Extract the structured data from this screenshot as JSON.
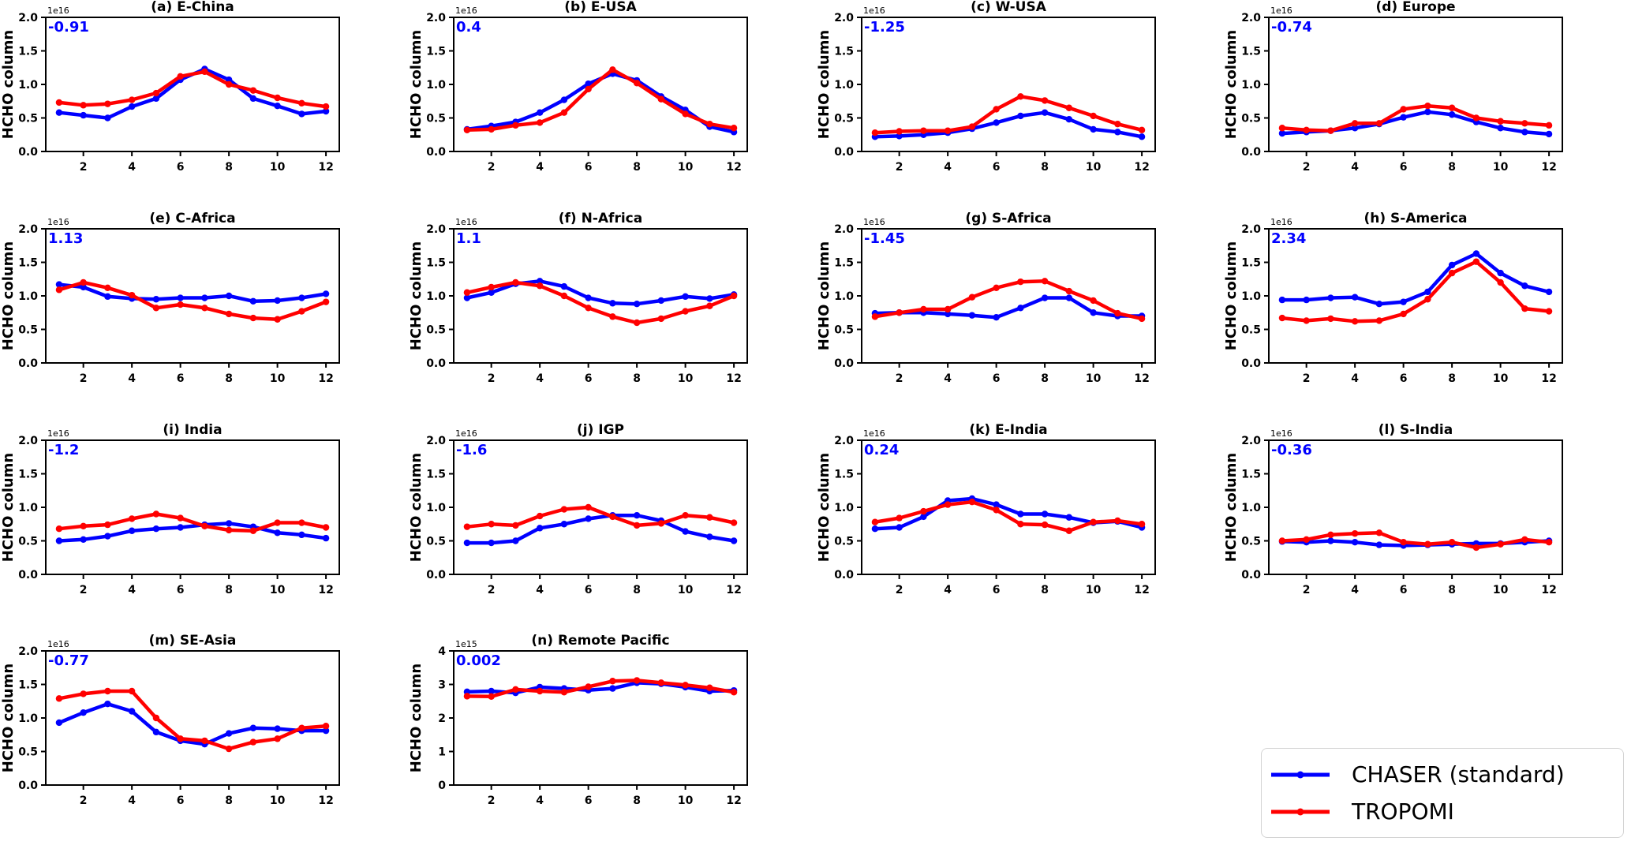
{
  "figure": {
    "background": "#ffffff",
    "annotation_color": "#0000ff",
    "axis_color": "#000000"
  },
  "legend": {
    "items": [
      {
        "name": "chaser",
        "label": "CHASER (standard)",
        "color": "#0000ff"
      },
      {
        "name": "tropomi",
        "label": "TROPOMI",
        "color": "#ff0000"
      }
    ]
  },
  "chart_data": {
    "type": "line",
    "x": [
      1,
      2,
      3,
      4,
      5,
      6,
      7,
      8,
      9,
      10,
      11,
      12
    ],
    "xticks": [
      2,
      4,
      6,
      8,
      10,
      12
    ],
    "xlabel": "",
    "grid": false,
    "legend_position": "bottom-right",
    "series_names": [
      "CHASER (standard)",
      "TROPOMI"
    ],
    "series_colors": [
      "#0000ff",
      "#ff0000"
    ],
    "panels": [
      {
        "id": "a",
        "title": "(a) E-China",
        "ylabel": "HCHO column",
        "scale_label": "1e16",
        "annotation": "-0.91",
        "ylim": [
          0,
          2.0
        ],
        "yticks": [
          0.0,
          0.5,
          1.0,
          1.5,
          2.0
        ],
        "ytick_labels": [
          "0.0",
          "0.5",
          "1.0",
          "1.5",
          "2.0"
        ],
        "series": [
          {
            "name": "CHASER (standard)",
            "color": "#0000ff",
            "values": [
              0.58,
              0.54,
              0.5,
              0.67,
              0.79,
              1.07,
              1.23,
              1.07,
              0.79,
              0.68,
              0.56,
              0.6
            ]
          },
          {
            "name": "TROPOMI",
            "color": "#ff0000",
            "values": [
              0.73,
              0.69,
              0.71,
              0.77,
              0.87,
              1.12,
              1.19,
              1.0,
              0.91,
              0.8,
              0.72,
              0.67
            ]
          }
        ]
      },
      {
        "id": "b",
        "title": "(b) E-USA",
        "ylabel": "HCHO column",
        "scale_label": "1e16",
        "annotation": "0.4",
        "ylim": [
          0,
          2.0
        ],
        "yticks": [
          0.0,
          0.5,
          1.0,
          1.5,
          2.0
        ],
        "ytick_labels": [
          "0.0",
          "0.5",
          "1.0",
          "1.5",
          "2.0"
        ],
        "series": [
          {
            "name": "CHASER (standard)",
            "color": "#0000ff",
            "values": [
              0.33,
              0.38,
              0.44,
              0.58,
              0.77,
              1.01,
              1.16,
              1.06,
              0.82,
              0.62,
              0.37,
              0.29
            ]
          },
          {
            "name": "TROPOMI",
            "color": "#ff0000",
            "values": [
              0.32,
              0.33,
              0.39,
              0.43,
              0.58,
              0.93,
              1.22,
              1.02,
              0.78,
              0.56,
              0.41,
              0.35
            ]
          }
        ]
      },
      {
        "id": "c",
        "title": "(c) W-USA",
        "ylabel": "HCHO column",
        "scale_label": "1e16",
        "annotation": "-1.25",
        "ylim": [
          0,
          2.0
        ],
        "yticks": [
          0.0,
          0.5,
          1.0,
          1.5,
          2.0
        ],
        "ytick_labels": [
          "0.0",
          "0.5",
          "1.0",
          "1.5",
          "2.0"
        ],
        "series": [
          {
            "name": "CHASER (standard)",
            "color": "#0000ff",
            "values": [
              0.22,
              0.23,
              0.25,
              0.28,
              0.34,
              0.43,
              0.53,
              0.58,
              0.48,
              0.33,
              0.29,
              0.22
            ]
          },
          {
            "name": "TROPOMI",
            "color": "#ff0000",
            "values": [
              0.28,
              0.3,
              0.31,
              0.31,
              0.37,
              0.63,
              0.82,
              0.76,
              0.65,
              0.53,
              0.41,
              0.32
            ]
          }
        ]
      },
      {
        "id": "d",
        "title": "(d) Europe",
        "ylabel": "HCHO column",
        "scale_label": "1e16",
        "annotation": "-0.74",
        "ylim": [
          0,
          2.0
        ],
        "yticks": [
          0.0,
          0.5,
          1.0,
          1.5,
          2.0
        ],
        "ytick_labels": [
          "0.0",
          "0.5",
          "1.0",
          "1.5",
          "2.0"
        ],
        "series": [
          {
            "name": "CHASER (standard)",
            "color": "#0000ff",
            "values": [
              0.27,
              0.29,
              0.31,
              0.35,
              0.41,
              0.51,
              0.59,
              0.55,
              0.44,
              0.35,
              0.29,
              0.26
            ]
          },
          {
            "name": "TROPOMI",
            "color": "#ff0000",
            "values": [
              0.35,
              0.32,
              0.31,
              0.42,
              0.42,
              0.63,
              0.68,
              0.65,
              0.5,
              0.45,
              0.42,
              0.39
            ]
          }
        ]
      },
      {
        "id": "e",
        "title": "(e) C-Africa",
        "ylabel": "HCHO column",
        "scale_label": "1e16",
        "annotation": "1.13",
        "ylim": [
          0,
          2.0
        ],
        "yticks": [
          0.0,
          0.5,
          1.0,
          1.5,
          2.0
        ],
        "ytick_labels": [
          "0.0",
          "0.5",
          "1.0",
          "1.5",
          "2.0"
        ],
        "series": [
          {
            "name": "CHASER (standard)",
            "color": "#0000ff",
            "values": [
              1.17,
              1.13,
              0.99,
              0.96,
              0.95,
              0.97,
              0.97,
              1.0,
              0.92,
              0.93,
              0.97,
              1.03
            ]
          },
          {
            "name": "TROPOMI",
            "color": "#ff0000",
            "values": [
              1.09,
              1.2,
              1.12,
              1.01,
              0.82,
              0.87,
              0.82,
              0.73,
              0.67,
              0.65,
              0.77,
              0.91
            ]
          }
        ]
      },
      {
        "id": "f",
        "title": "(f) N-Africa",
        "ylabel": "HCHO column",
        "scale_label": "1e16",
        "annotation": "1.1",
        "ylim": [
          0,
          2.0
        ],
        "yticks": [
          0.0,
          0.5,
          1.0,
          1.5,
          2.0
        ],
        "ytick_labels": [
          "0.0",
          "0.5",
          "1.0",
          "1.5",
          "2.0"
        ],
        "series": [
          {
            "name": "CHASER (standard)",
            "color": "#0000ff",
            "values": [
              0.97,
              1.05,
              1.18,
              1.22,
              1.14,
              0.97,
              0.89,
              0.88,
              0.93,
              0.99,
              0.96,
              1.02
            ]
          },
          {
            "name": "TROPOMI",
            "color": "#ff0000",
            "values": [
              1.05,
              1.13,
              1.2,
              1.15,
              1.0,
              0.82,
              0.69,
              0.6,
              0.66,
              0.77,
              0.85,
              1.0
            ]
          }
        ]
      },
      {
        "id": "g",
        "title": "(g) S-Africa",
        "ylabel": "HCHO column",
        "scale_label": "1e16",
        "annotation": "-1.45",
        "ylim": [
          0,
          2.0
        ],
        "yticks": [
          0.0,
          0.5,
          1.0,
          1.5,
          2.0
        ],
        "ytick_labels": [
          "0.0",
          "0.5",
          "1.0",
          "1.5",
          "2.0"
        ],
        "series": [
          {
            "name": "CHASER (standard)",
            "color": "#0000ff",
            "values": [
              0.74,
              0.75,
              0.75,
              0.73,
              0.71,
              0.68,
              0.82,
              0.97,
              0.97,
              0.75,
              0.7,
              0.7
            ]
          },
          {
            "name": "TROPOMI",
            "color": "#ff0000",
            "values": [
              0.69,
              0.75,
              0.8,
              0.8,
              0.98,
              1.12,
              1.21,
              1.22,
              1.07,
              0.93,
              0.74,
              0.66
            ]
          }
        ]
      },
      {
        "id": "h",
        "title": "(h) S-America",
        "ylabel": "HCHO column",
        "scale_label": "1e16",
        "annotation": "2.34",
        "ylim": [
          0,
          2.0
        ],
        "yticks": [
          0.0,
          0.5,
          1.0,
          1.5,
          2.0
        ],
        "ytick_labels": [
          "0.0",
          "0.5",
          "1.0",
          "1.5",
          "2.0"
        ],
        "series": [
          {
            "name": "CHASER (standard)",
            "color": "#0000ff",
            "values": [
              0.94,
              0.94,
              0.97,
              0.98,
              0.88,
              0.91,
              1.06,
              1.46,
              1.63,
              1.34,
              1.15,
              1.06
            ]
          },
          {
            "name": "TROPOMI",
            "color": "#ff0000",
            "values": [
              0.67,
              0.63,
              0.66,
              0.62,
              0.63,
              0.73,
              0.95,
              1.34,
              1.51,
              1.2,
              0.81,
              0.77
            ]
          }
        ]
      },
      {
        "id": "i",
        "title": "(i) India",
        "ylabel": "HCHO column",
        "scale_label": "1e16",
        "annotation": "-1.2",
        "ylim": [
          0,
          2.0
        ],
        "yticks": [
          0.0,
          0.5,
          1.0,
          1.5,
          2.0
        ],
        "ytick_labels": [
          "0.0",
          "0.5",
          "1.0",
          "1.5",
          "2.0"
        ],
        "series": [
          {
            "name": "CHASER (standard)",
            "color": "#0000ff",
            "values": [
              0.5,
              0.52,
              0.57,
              0.65,
              0.68,
              0.7,
              0.74,
              0.76,
              0.71,
              0.62,
              0.59,
              0.54
            ]
          },
          {
            "name": "TROPOMI",
            "color": "#ff0000",
            "values": [
              0.68,
              0.72,
              0.74,
              0.83,
              0.9,
              0.84,
              0.72,
              0.66,
              0.65,
              0.77,
              0.77,
              0.7
            ]
          }
        ]
      },
      {
        "id": "j",
        "title": "(j) IGP",
        "ylabel": "HCHO column",
        "scale_label": "1e16",
        "annotation": "-1.6",
        "ylim": [
          0,
          2.0
        ],
        "yticks": [
          0.0,
          0.5,
          1.0,
          1.5,
          2.0
        ],
        "ytick_labels": [
          "0.0",
          "0.5",
          "1.0",
          "1.5",
          "2.0"
        ],
        "series": [
          {
            "name": "CHASER (standard)",
            "color": "#0000ff",
            "values": [
              0.47,
              0.47,
              0.5,
              0.69,
              0.75,
              0.83,
              0.88,
              0.88,
              0.8,
              0.64,
              0.56,
              0.5
            ]
          },
          {
            "name": "TROPOMI",
            "color": "#ff0000",
            "values": [
              0.71,
              0.75,
              0.73,
              0.87,
              0.97,
              1.0,
              0.86,
              0.73,
              0.76,
              0.88,
              0.85,
              0.77
            ]
          }
        ]
      },
      {
        "id": "k",
        "title": "(k) E-India",
        "ylabel": "HCHO column",
        "scale_label": "1e16",
        "annotation": "0.24",
        "ylim": [
          0,
          2.0
        ],
        "yticks": [
          0.0,
          0.5,
          1.0,
          1.5,
          2.0
        ],
        "ytick_labels": [
          "0.0",
          "0.5",
          "1.0",
          "1.5",
          "2.0"
        ],
        "series": [
          {
            "name": "CHASER (standard)",
            "color": "#0000ff",
            "values": [
              0.68,
              0.7,
              0.86,
              1.1,
              1.13,
              1.04,
              0.9,
              0.9,
              0.85,
              0.77,
              0.79,
              0.7
            ]
          },
          {
            "name": "TROPOMI",
            "color": "#ff0000",
            "values": [
              0.78,
              0.84,
              0.94,
              1.04,
              1.08,
              0.96,
              0.75,
              0.74,
              0.65,
              0.78,
              0.8,
              0.75
            ]
          }
        ]
      },
      {
        "id": "l",
        "title": "(l) S-India",
        "ylabel": "HCHO column",
        "scale_label": "1e16",
        "annotation": "-0.36",
        "ylim": [
          0,
          2.0
        ],
        "yticks": [
          0.0,
          0.5,
          1.0,
          1.5,
          2.0
        ],
        "ytick_labels": [
          "0.0",
          "0.5",
          "1.0",
          "1.5",
          "2.0"
        ],
        "series": [
          {
            "name": "CHASER (standard)",
            "color": "#0000ff",
            "values": [
              0.49,
              0.48,
              0.5,
              0.48,
              0.44,
              0.43,
              0.44,
              0.45,
              0.46,
              0.46,
              0.48,
              0.5
            ]
          },
          {
            "name": "TROPOMI",
            "color": "#ff0000",
            "values": [
              0.5,
              0.52,
              0.59,
              0.61,
              0.62,
              0.48,
              0.45,
              0.48,
              0.4,
              0.45,
              0.52,
              0.48
            ]
          }
        ]
      },
      {
        "id": "m",
        "title": "(m) SE-Asia",
        "ylabel": "HCHO column",
        "scale_label": "1e16",
        "annotation": "-0.77",
        "ylim": [
          0,
          2.0
        ],
        "yticks": [
          0.0,
          0.5,
          1.0,
          1.5,
          2.0
        ],
        "ytick_labels": [
          "0.0",
          "0.5",
          "1.0",
          "1.5",
          "2.0"
        ],
        "series": [
          {
            "name": "CHASER (standard)",
            "color": "#0000ff",
            "values": [
              0.93,
              1.08,
              1.21,
              1.1,
              0.79,
              0.66,
              0.61,
              0.77,
              0.85,
              0.84,
              0.81,
              0.81
            ]
          },
          {
            "name": "TROPOMI",
            "color": "#ff0000",
            "values": [
              1.29,
              1.36,
              1.4,
              1.4,
              1.0,
              0.69,
              0.66,
              0.54,
              0.64,
              0.69,
              0.85,
              0.88
            ]
          }
        ]
      },
      {
        "id": "n",
        "title": "(n) Remote Pacific",
        "ylabel": "HCHO column",
        "scale_label": "1e15",
        "annotation": "0.002",
        "ylim": [
          0,
          4.0
        ],
        "yticks": [
          0,
          1,
          2,
          3,
          4
        ],
        "ytick_labels": [
          "0",
          "1",
          "2",
          "3",
          "4"
        ],
        "series": [
          {
            "name": "CHASER (standard)",
            "color": "#0000ff",
            "values": [
              2.78,
              2.8,
              2.75,
              2.92,
              2.88,
              2.83,
              2.88,
              3.05,
              3.02,
              2.92,
              2.8,
              2.82
            ]
          },
          {
            "name": "TROPOMI",
            "color": "#ff0000",
            "values": [
              2.65,
              2.64,
              2.85,
              2.8,
              2.77,
              2.93,
              3.1,
              3.12,
              3.05,
              2.98,
              2.9,
              2.77
            ]
          }
        ]
      }
    ]
  }
}
